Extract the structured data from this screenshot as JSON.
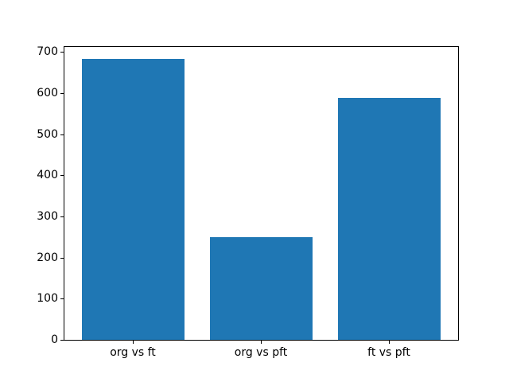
{
  "figure": {
    "background_color": "#ffffff",
    "title": ""
  },
  "chart_data": {
    "type": "bar",
    "title": "",
    "xlabel": "",
    "ylabel": "",
    "categories": [
      "org vs ft",
      "org vs pft",
      "ft vs pft"
    ],
    "values": [
      683,
      250,
      589
    ],
    "yticks": [
      0,
      100,
      200,
      300,
      400,
      500,
      600,
      700
    ],
    "ylim": [
      0,
      714
    ],
    "xlim": [
      -0.54,
      2.54
    ],
    "bar_width": 0.8,
    "bar_color": "#1f77b4",
    "axis_color": "#000000",
    "tick_label_color": "#000000",
    "grid": "off",
    "legend": "none"
  }
}
